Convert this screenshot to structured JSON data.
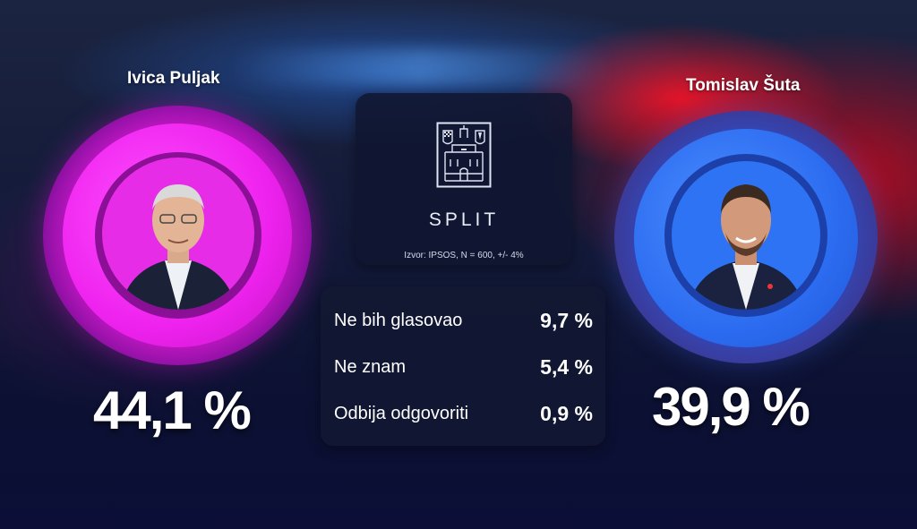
{
  "candidates": {
    "left": {
      "name": "Ivica Puljak",
      "percent": "44,1 %",
      "color": "#e020e0"
    },
    "right": {
      "name": "Tomislav Šuta",
      "percent": "39,9 %",
      "color": "#2f7bff"
    }
  },
  "city_card": {
    "title": "SPLIT",
    "icon": "split-coat-of-arms-icon",
    "source": "Izvor: IPSOS, N = 600, +/- 4%"
  },
  "stats": [
    {
      "label": "Ne bih glasovao",
      "value": "9,7 %"
    },
    {
      "label": "Ne znam",
      "value": "5,4 %"
    },
    {
      "label": "Odbija odgovoriti",
      "value": "0,9 %"
    }
  ]
}
